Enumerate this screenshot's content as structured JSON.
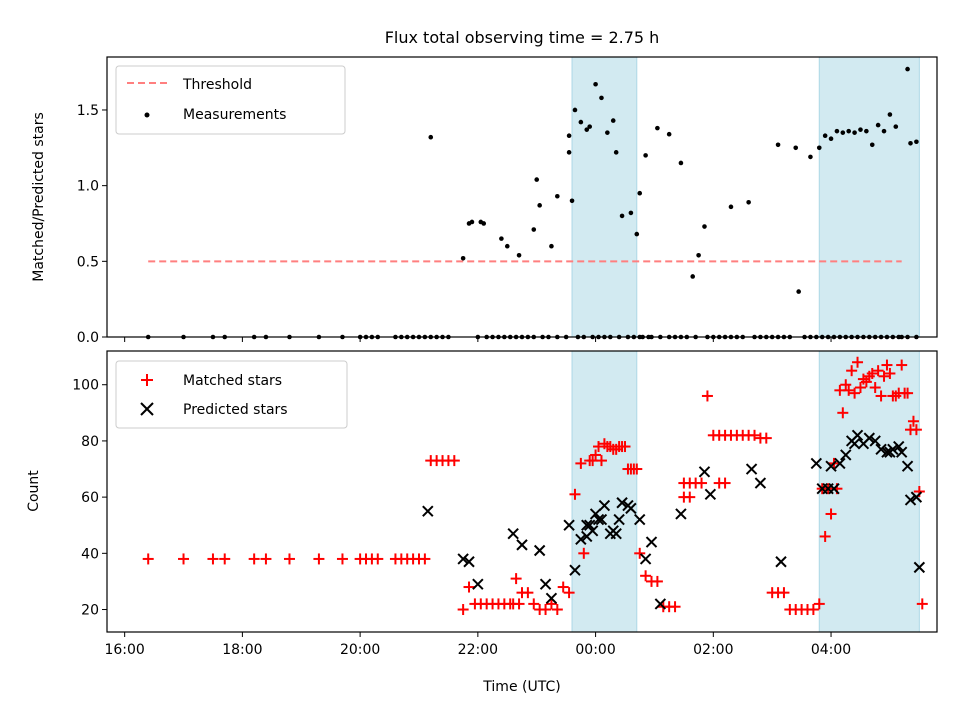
{
  "title": "Flux total observing time = 2.75 h",
  "xlabel": "Time (UTC)",
  "colors": {
    "threshold": "#ff7f7f",
    "measurements": "#000000",
    "matched": "#ff0000",
    "predicted": "#000000",
    "span": "#add8e6"
  },
  "chart_data": [
    {
      "type": "scatter",
      "name": "ratio-panel",
      "ylabel": "Matched/Predicted stars",
      "ylim": [
        0,
        1.85
      ],
      "xlim": [
        15.7,
        29.8
      ],
      "yticks": [
        0.0,
        0.5,
        1.0,
        1.5
      ],
      "ytick_labels": [
        "0.0",
        "0.5",
        "1.0",
        "1.5"
      ],
      "legend": {
        "placement": "top-left",
        "entries": [
          {
            "label": "Threshold",
            "kind": "dashed-line",
            "series": "threshold"
          },
          {
            "label": "Measurements",
            "kind": "dot",
            "series": "measurements"
          }
        ]
      },
      "threshold": {
        "value": 0.5,
        "x": [
          16.4,
          29.2
        ]
      },
      "spans": [
        [
          23.6,
          24.7
        ],
        [
          27.8,
          29.5
        ]
      ],
      "series": [
        {
          "name": "Measurements",
          "marker": "dot",
          "x": [
            16.4,
            17.0,
            17.5,
            17.7,
            18.2,
            18.4,
            18.8,
            19.3,
            19.7,
            20.0,
            20.1,
            20.2,
            20.3,
            20.6,
            20.7,
            20.8,
            20.9,
            21.0,
            21.1,
            21.2,
            21.3,
            21.4,
            21.5,
            21.75,
            21.85,
            22.0,
            22.15,
            22.25,
            22.35,
            22.45,
            22.55,
            22.65,
            22.75,
            22.85,
            22.95,
            23.1,
            23.2,
            23.35,
            23.5,
            23.6,
            23.7,
            23.8,
            23.95,
            24.05,
            24.15,
            24.25,
            24.4,
            24.55,
            24.65,
            24.75,
            24.8,
            24.9,
            24.95,
            25.1,
            25.25,
            25.35,
            25.45,
            25.55,
            25.7,
            25.9,
            26.0,
            26.1,
            26.2,
            26.3,
            26.4,
            26.5,
            26.7,
            26.8,
            26.9,
            27.0,
            27.1,
            27.2,
            27.3,
            27.45,
            27.55,
            27.65,
            27.75,
            27.85,
            27.95,
            28.05,
            28.15,
            28.25,
            28.35,
            28.45,
            28.55,
            28.65,
            28.75,
            28.85,
            28.95,
            29.05,
            29.15,
            29.2,
            29.3,
            29.45,
            22.05,
            22.1,
            22.4,
            22.5,
            22.7,
            22.95,
            23.05,
            23.25,
            23.35,
            23.55,
            23.65,
            23.75,
            23.85,
            23.9,
            24.0,
            24.1,
            24.2,
            24.3,
            24.35,
            24.45,
            24.6,
            24.7,
            24.75,
            24.85,
            25.05,
            25.25,
            25.45,
            25.65,
            25.75,
            25.85,
            26.3,
            26.6,
            27.4,
            27.1,
            27.65,
            27.8,
            27.9,
            28.0,
            28.1,
            28.2,
            28.3,
            28.4,
            28.5,
            28.6,
            28.7,
            28.8,
            28.9,
            29.0,
            29.1,
            29.3,
            21.2,
            21.9,
            23.0,
            23.55,
            29.35,
            29.45
          ],
          "y": [
            0,
            0,
            0,
            0,
            0,
            0,
            0,
            0,
            0,
            0,
            0,
            0,
            0,
            0,
            0,
            0,
            0,
            0,
            0,
            0,
            0,
            0,
            0,
            0.52,
            0.75,
            0,
            0,
            0,
            0,
            0,
            0,
            0,
            0,
            0,
            0,
            0,
            0,
            0,
            0,
            0.9,
            0,
            0,
            0,
            0,
            0,
            0,
            0,
            0,
            0,
            0,
            0,
            0,
            0,
            0,
            0,
            0,
            0,
            0,
            0,
            0,
            0,
            0,
            0,
            0,
            0,
            0,
            0,
            0,
            0,
            0,
            0,
            0,
            0,
            0.3,
            0,
            0,
            0,
            0,
            0,
            0,
            0,
            0,
            0,
            0,
            0,
            0,
            0,
            0,
            0,
            0,
            0,
            0,
            0,
            0,
            0.76,
            0.75,
            0.65,
            0.6,
            0.54,
            0.71,
            0.87,
            0.6,
            0.93,
            1.22,
            1.5,
            1.42,
            1.37,
            1.39,
            1.67,
            1.58,
            1.35,
            1.43,
            1.22,
            0.8,
            0.82,
            0.68,
            0.95,
            1.2,
            1.38,
            1.34,
            1.15,
            0.4,
            0.54,
            0.73,
            0.86,
            0.89,
            1.25,
            1.27,
            1.19,
            1.25,
            1.33,
            1.31,
            1.36,
            1.35,
            1.36,
            1.35,
            1.37,
            1.36,
            1.27,
            1.4,
            1.36,
            1.47,
            1.39,
            1.77,
            1.32,
            0.76,
            1.04,
            1.33,
            1.28,
            1.29
          ]
        }
      ]
    },
    {
      "type": "scatter",
      "name": "count-panel",
      "ylabel": "Count",
      "ylim": [
        12,
        112
      ],
      "xlim": [
        15.7,
        29.8
      ],
      "yticks": [
        20,
        40,
        60,
        80,
        100
      ],
      "ytick_labels": [
        "20",
        "40",
        "60",
        "80",
        "100"
      ],
      "xticks": [
        16,
        18,
        20,
        22,
        24,
        26,
        28
      ],
      "xtick_labels": [
        "16:00",
        "18:00",
        "20:00",
        "22:00",
        "00:00",
        "02:00",
        "04:00"
      ],
      "legend": {
        "placement": "top-left",
        "entries": [
          {
            "label": "Matched stars",
            "kind": "plus",
            "series": "matched"
          },
          {
            "label": "Predicted stars",
            "kind": "cross",
            "series": "predicted"
          }
        ]
      },
      "spans": [
        [
          23.6,
          24.7
        ],
        [
          27.8,
          29.5
        ]
      ],
      "series": [
        {
          "name": "Matched stars",
          "marker": "plus",
          "x": [
            16.4,
            17.0,
            17.5,
            17.7,
            18.2,
            18.4,
            18.8,
            19.3,
            19.7,
            20.0,
            20.1,
            20.2,
            20.3,
            20.6,
            20.7,
            20.8,
            20.9,
            21.0,
            21.1,
            21.2,
            21.3,
            21.4,
            21.5,
            21.6,
            21.75,
            21.85,
            21.95,
            22.05,
            22.15,
            22.25,
            22.35,
            22.45,
            22.55,
            22.65,
            22.75,
            22.85,
            22.95,
            23.05,
            23.15,
            23.25,
            23.35,
            23.45,
            23.55,
            23.65,
            23.75,
            23.9,
            24.05,
            24.15,
            24.25,
            24.35,
            24.45,
            24.55,
            24.65,
            24.75,
            24.85,
            24.95,
            25.05,
            25.15,
            25.25,
            25.35,
            25.5,
            25.6,
            25.7,
            25.8,
            25.9,
            26.0,
            26.1,
            26.2,
            26.3,
            26.4,
            26.5,
            26.6,
            26.7,
            26.8,
            26.9,
            27.0,
            27.1,
            27.2,
            27.3,
            27.4,
            27.5,
            27.6,
            27.7,
            27.8,
            27.9,
            28.0,
            28.1,
            28.2,
            28.3,
            28.4,
            28.5,
            28.6,
            28.7,
            28.8,
            28.9,
            29.0,
            29.1,
            29.2,
            29.3,
            29.4,
            29.45,
            29.5,
            29.55,
            27.85,
            27.95,
            28.05,
            28.15,
            28.25,
            28.35,
            28.45,
            28.55,
            28.65,
            28.75,
            28.85,
            28.95,
            29.05,
            29.15,
            29.25,
            29.35,
            23.95,
            24.0,
            24.1,
            24.2,
            24.3,
            24.4,
            24.5,
            24.6,
            24.7,
            22.6,
            22.7,
            23.8,
            25.5,
            25.6,
            26.1,
            26.2
          ],
          "y": [
            38,
            38,
            38,
            38,
            38,
            38,
            38,
            38,
            38,
            38,
            38,
            38,
            38,
            38,
            38,
            38,
            38,
            38,
            38,
            73,
            73,
            73,
            73,
            73,
            20,
            28,
            22,
            22,
            22,
            22,
            22,
            22,
            22,
            31,
            26,
            26,
            22,
            20,
            20,
            22,
            20,
            28,
            26,
            61,
            72,
            73,
            78,
            79,
            78,
            77,
            78,
            70,
            70,
            40,
            32,
            30,
            30,
            21,
            21,
            21,
            65,
            65,
            65,
            65,
            96,
            82,
            82,
            82,
            82,
            82,
            82,
            82,
            82,
            81,
            81,
            26,
            26,
            26,
            20,
            20,
            20,
            20,
            20,
            22,
            46,
            54,
            63,
            90,
            98,
            97,
            99,
            101,
            104,
            105,
            103,
            104,
            96,
            107,
            97,
            87,
            84,
            62,
            22,
            63,
            63,
            72,
            98,
            100,
            105,
            108,
            102,
            103,
            99,
            96,
            107,
            96,
            97,
            97,
            84,
            73,
            75,
            73,
            78,
            77,
            78,
            78,
            70,
            70,
            22,
            22,
            40,
            60,
            60,
            65,
            65
          ]
        },
        {
          "name": "Predicted stars",
          "marker": "cross",
          "x": [
            21.15,
            21.75,
            21.85,
            22.0,
            22.6,
            22.75,
            23.05,
            23.15,
            23.25,
            23.55,
            23.65,
            23.75,
            23.85,
            23.95,
            24.05,
            24.15,
            24.25,
            24.35,
            24.45,
            24.55,
            24.75,
            24.85,
            24.95,
            25.1,
            25.45,
            25.85,
            25.95,
            26.65,
            26.8,
            27.15,
            27.75,
            27.85,
            27.95,
            28.05,
            28.15,
            28.25,
            28.35,
            28.45,
            28.55,
            28.65,
            28.75,
            28.85,
            28.95,
            29.05,
            29.15,
            29.2,
            29.3,
            29.35,
            29.45,
            29.5,
            23.85,
            23.9,
            24.0,
            24.1,
            24.3,
            24.4,
            24.6,
            28.0,
            28.4,
            29.0
          ],
          "y": [
            55,
            38,
            37,
            29,
            47,
            43,
            41,
            29,
            24,
            50,
            34,
            45,
            50,
            48,
            52,
            57,
            47,
            47,
            58,
            57,
            52,
            38,
            44,
            22,
            54,
            69,
            61,
            70,
            65,
            37,
            72,
            63,
            63,
            63,
            72,
            75,
            80,
            82,
            79,
            81,
            80,
            77,
            76,
            77,
            78,
            76,
            71,
            59,
            60,
            35,
            46,
            50,
            54,
            52,
            48,
            52,
            56,
            71,
            79,
            76
          ]
        }
      ]
    }
  ]
}
